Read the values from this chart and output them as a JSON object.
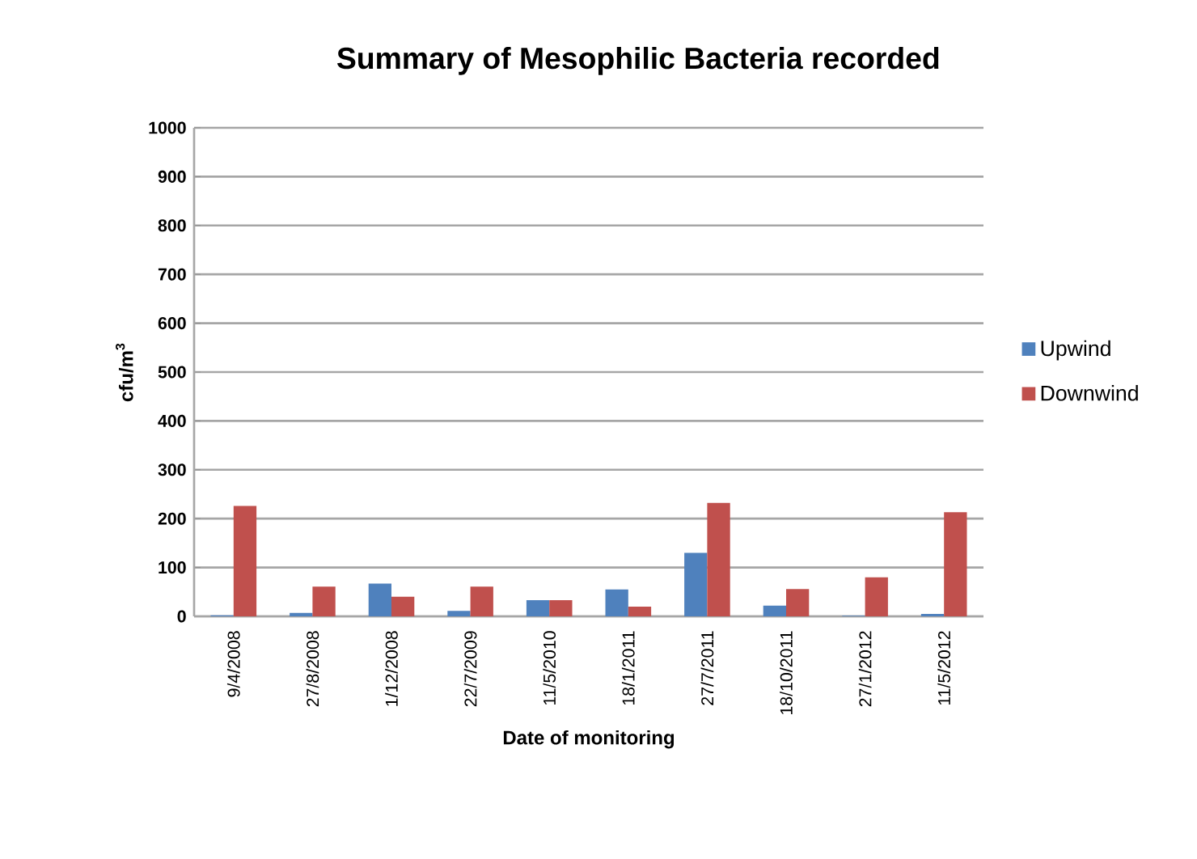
{
  "chart_data": {
    "type": "bar",
    "title": "Summary of Mesophilic Bacteria recorded",
    "xlabel": "Date of monitoring",
    "ylabel": "cfu/m$^{3}$",
    "categories": [
      "9/4/2008",
      "27/8/2008",
      "1/12/2008",
      "22/7/2009",
      "11/5/2010",
      "18/1/2011",
      "27/7/2011",
      "18/10/2011",
      "27/1/2012",
      "11/5/2012"
    ],
    "series": [
      {
        "name": "Upwind",
        "color": "#4f81bd",
        "values": [
          2,
          7,
          67,
          11,
          33,
          55,
          130,
          22,
          1,
          5
        ]
      },
      {
        "name": "Downwind",
        "color": "#c0504d",
        "values": [
          226,
          61,
          40,
          61,
          33,
          20,
          232,
          56,
          80,
          213
        ]
      }
    ],
    "ylim": [
      0,
      1000
    ],
    "yticks": [
      0,
      100,
      200,
      300,
      400,
      500,
      600,
      700,
      800,
      900,
      1000
    ],
    "grid": "y",
    "legend": "right"
  }
}
